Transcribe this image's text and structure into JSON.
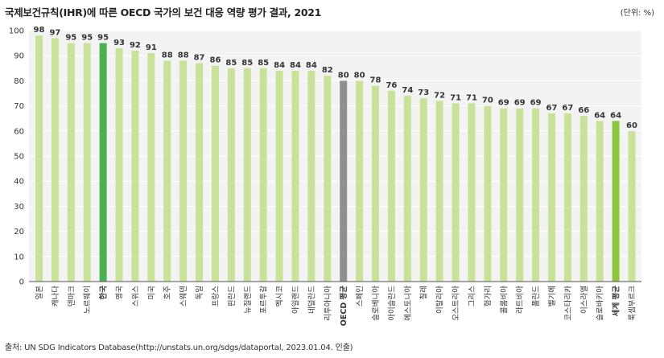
{
  "header": {
    "title": "국제보건규칙(IHR)에 따른 OECD 국가의 보건 대응 역량 평가 결과, 2021",
    "unit": "(단위: %)"
  },
  "footer": {
    "source": "출처: UN SDG Indicators Database(http://unstats.un.org/sdgs/dataportal, 2023.01.04. 인출)"
  },
  "colors": {
    "default": "#c9e29a",
    "korea": "#4caf50",
    "oecd_average": "#8f8f8f",
    "world_average": "#8dc63f",
    "korea_label": "#4caf50",
    "plot_bg": "#f3f3f3",
    "grid": "#ffffff"
  },
  "chart_data": {
    "type": "bar",
    "title": "국제보건규칙(IHR)에 따른 OECD 국가의 보건 대응 역량 평가 결과, 2021",
    "xlabel": "",
    "ylabel": "(단위: %)",
    "ylim": [
      0,
      100
    ],
    "yticks": [
      0,
      10,
      20,
      30,
      40,
      50,
      60,
      70,
      80,
      90,
      100
    ],
    "grid": true,
    "categories": [
      "일본",
      "캐나다",
      "덴마크",
      "노르웨이",
      "한국",
      "영국",
      "스위스",
      "미국",
      "호주",
      "스웨덴",
      "독일",
      "프랑스",
      "핀란드",
      "뉴질랜드",
      "포르투갈",
      "멕시코",
      "아일랜드",
      "네덜란드",
      "리투아니아",
      "OECD 평균",
      "스페인",
      "슬로베니아",
      "아이슬란드",
      "에스토니아",
      "칠레",
      "이탈리아",
      "오스트리아",
      "그리스",
      "헝가리",
      "콜롬비아",
      "라트비아",
      "폴란드",
      "벨기에",
      "코스타리카",
      "이스라엘",
      "슬로바키아",
      "세계 평균",
      "룩셈부르크"
    ],
    "values": [
      98,
      97,
      95,
      95,
      95,
      93,
      92,
      91,
      88,
      88,
      87,
      86,
      85,
      85,
      85,
      84,
      84,
      84,
      82,
      80,
      80,
      78,
      76,
      74,
      73,
      72,
      71,
      71,
      70,
      69,
      69,
      69,
      67,
      67,
      66,
      64,
      64,
      60
    ],
    "highlights": {
      "한국": "korea",
      "OECD 평균": "oecd_average",
      "세계 평균": "world_average"
    }
  }
}
